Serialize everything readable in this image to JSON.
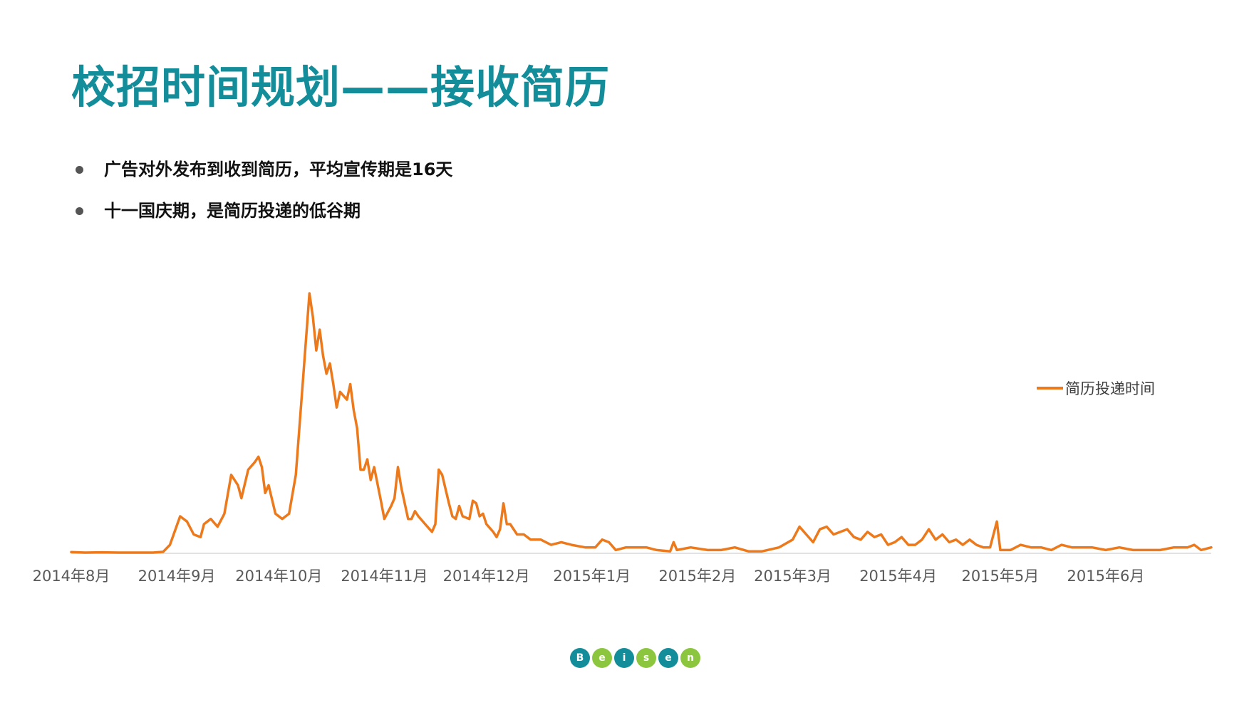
{
  "slide": {
    "title": "校招时间规划——接收简历",
    "bullets": [
      "广告对外发布到收到简历，平均宣传期是16天",
      "十一国庆期，是简历投递的低谷期"
    ],
    "logo_letters": [
      "B",
      "e",
      "i",
      "s",
      "e",
      "n"
    ],
    "logo_colors": [
      "#138d99",
      "#8cc63f",
      "#138d99",
      "#8cc63f",
      "#138d99",
      "#8cc63f"
    ],
    "title_color": "#138d99"
  },
  "chart_data": {
    "type": "line",
    "title": "",
    "xlabel": "",
    "ylabel": "",
    "ylim": [
      0,
      100
    ],
    "grid": false,
    "legend": "right",
    "x_ticks": [
      {
        "date": "2014-08-01",
        "label": "2014年8月"
      },
      {
        "date": "2014-09-01",
        "label": "2014年9月"
      },
      {
        "date": "2014-10-01",
        "label": "2014年10月"
      },
      {
        "date": "2014-11-01",
        "label": "2014年11月"
      },
      {
        "date": "2014-12-01",
        "label": "2014年12月"
      },
      {
        "date": "2015-01-01",
        "label": "2015年1月"
      },
      {
        "date": "2015-02-01",
        "label": "2015年2月"
      },
      {
        "date": "2015-03-01",
        "label": "2015年3月"
      },
      {
        "date": "2015-04-01",
        "label": "2015年4月"
      },
      {
        "date": "2015-05-01",
        "label": "2015年5月"
      },
      {
        "date": "2015-06-01",
        "label": "2015年6月"
      }
    ],
    "series": [
      {
        "name": "简历投递时间",
        "color": "#ec7a1c",
        "points": [
          [
            "2014-08-01",
            0.2
          ],
          [
            "2014-08-05",
            0.0
          ],
          [
            "2014-08-10",
            0.1
          ],
          [
            "2014-08-15",
            0.0
          ],
          [
            "2014-08-20",
            0.0
          ],
          [
            "2014-08-25",
            0.0
          ],
          [
            "2014-08-28",
            0.3
          ],
          [
            "2014-08-30",
            3
          ],
          [
            "2014-09-02",
            14
          ],
          [
            "2014-09-04",
            12
          ],
          [
            "2014-09-06",
            7
          ],
          [
            "2014-09-08",
            6
          ],
          [
            "2014-09-09",
            11
          ],
          [
            "2014-09-11",
            13
          ],
          [
            "2014-09-13",
            10
          ],
          [
            "2014-09-15",
            15
          ],
          [
            "2014-09-17",
            30
          ],
          [
            "2014-09-19",
            26
          ],
          [
            "2014-09-20",
            21
          ],
          [
            "2014-09-22",
            32
          ],
          [
            "2014-09-24",
            35
          ],
          [
            "2014-09-25",
            37
          ],
          [
            "2014-09-26",
            33
          ],
          [
            "2014-09-27",
            23
          ],
          [
            "2014-09-28",
            26
          ],
          [
            "2014-09-30",
            15
          ],
          [
            "2014-10-02",
            13
          ],
          [
            "2014-10-04",
            15
          ],
          [
            "2014-10-06",
            30
          ],
          [
            "2014-10-08",
            65
          ],
          [
            "2014-10-10",
            100
          ],
          [
            "2014-10-11",
            91
          ],
          [
            "2014-10-12",
            78
          ],
          [
            "2014-10-13",
            86
          ],
          [
            "2014-10-14",
            76
          ],
          [
            "2014-10-15",
            69
          ],
          [
            "2014-10-16",
            73
          ],
          [
            "2014-10-17",
            65
          ],
          [
            "2014-10-18",
            56
          ],
          [
            "2014-10-19",
            62
          ],
          [
            "2014-10-21",
            59
          ],
          [
            "2014-10-22",
            65
          ],
          [
            "2014-10-23",
            55
          ],
          [
            "2014-10-24",
            48
          ],
          [
            "2014-10-25",
            32
          ],
          [
            "2014-10-26",
            32
          ],
          [
            "2014-10-27",
            36
          ],
          [
            "2014-10-28",
            28
          ],
          [
            "2014-10-29",
            33
          ],
          [
            "2014-10-31",
            20
          ],
          [
            "2014-11-01",
            13
          ],
          [
            "2014-11-03",
            18
          ],
          [
            "2014-11-04",
            21
          ],
          [
            "2014-11-05",
            33
          ],
          [
            "2014-11-06",
            25
          ],
          [
            "2014-11-08",
            13
          ],
          [
            "2014-11-09",
            13
          ],
          [
            "2014-11-10",
            16
          ],
          [
            "2014-11-11",
            14
          ],
          [
            "2014-11-13",
            11
          ],
          [
            "2014-11-15",
            8
          ],
          [
            "2014-11-16",
            11
          ],
          [
            "2014-11-17",
            32
          ],
          [
            "2014-11-18",
            30
          ],
          [
            "2014-11-20",
            19
          ],
          [
            "2014-11-21",
            14
          ],
          [
            "2014-11-22",
            13
          ],
          [
            "2014-11-23",
            18
          ],
          [
            "2014-11-24",
            14
          ],
          [
            "2014-11-26",
            13
          ],
          [
            "2014-11-27",
            20
          ],
          [
            "2014-11-28",
            19
          ],
          [
            "2014-11-29",
            14
          ],
          [
            "2014-11-30",
            15
          ],
          [
            "2014-12-01",
            11
          ],
          [
            "2014-12-03",
            8
          ],
          [
            "2014-12-04",
            6
          ],
          [
            "2014-12-05",
            9
          ],
          [
            "2014-12-06",
            19
          ],
          [
            "2014-12-07",
            11
          ],
          [
            "2014-12-08",
            11
          ],
          [
            "2014-12-10",
            7
          ],
          [
            "2014-12-12",
            7
          ],
          [
            "2014-12-14",
            5
          ],
          [
            "2014-12-17",
            5
          ],
          [
            "2014-12-20",
            3
          ],
          [
            "2014-12-23",
            4
          ],
          [
            "2014-12-26",
            3
          ],
          [
            "2014-12-30",
            2
          ],
          [
            "2015-01-02",
            2
          ],
          [
            "2015-01-04",
            5
          ],
          [
            "2015-01-06",
            4
          ],
          [
            "2015-01-08",
            1
          ],
          [
            "2015-01-11",
            2
          ],
          [
            "2015-01-14",
            2
          ],
          [
            "2015-01-17",
            2
          ],
          [
            "2015-01-20",
            1
          ],
          [
            "2015-01-24",
            0.5
          ],
          [
            "2015-01-25",
            4
          ],
          [
            "2015-01-26",
            1
          ],
          [
            "2015-01-30",
            2
          ],
          [
            "2015-02-04",
            1
          ],
          [
            "2015-02-08",
            1
          ],
          [
            "2015-02-12",
            2
          ],
          [
            "2015-02-16",
            0.5
          ],
          [
            "2015-02-20",
            0.5
          ],
          [
            "2015-02-25",
            2
          ],
          [
            "2015-03-01",
            5
          ],
          [
            "2015-03-03",
            10
          ],
          [
            "2015-03-05",
            7
          ],
          [
            "2015-03-07",
            4
          ],
          [
            "2015-03-09",
            9
          ],
          [
            "2015-03-11",
            10
          ],
          [
            "2015-03-13",
            7
          ],
          [
            "2015-03-15",
            8
          ],
          [
            "2015-03-17",
            9
          ],
          [
            "2015-03-19",
            6
          ],
          [
            "2015-03-21",
            5
          ],
          [
            "2015-03-23",
            8
          ],
          [
            "2015-03-25",
            6
          ],
          [
            "2015-03-27",
            7
          ],
          [
            "2015-03-29",
            3
          ],
          [
            "2015-03-31",
            4
          ],
          [
            "2015-04-02",
            6
          ],
          [
            "2015-04-04",
            3
          ],
          [
            "2015-04-06",
            3
          ],
          [
            "2015-04-08",
            5
          ],
          [
            "2015-04-10",
            9
          ],
          [
            "2015-04-12",
            5
          ],
          [
            "2015-04-14",
            7
          ],
          [
            "2015-04-16",
            4
          ],
          [
            "2015-04-18",
            5
          ],
          [
            "2015-04-20",
            3
          ],
          [
            "2015-04-22",
            5
          ],
          [
            "2015-04-24",
            3
          ],
          [
            "2015-04-26",
            2
          ],
          [
            "2015-04-28",
            2
          ],
          [
            "2015-04-30",
            12
          ],
          [
            "2015-05-01",
            1
          ],
          [
            "2015-05-04",
            1
          ],
          [
            "2015-05-07",
            3
          ],
          [
            "2015-05-10",
            2
          ],
          [
            "2015-05-13",
            2
          ],
          [
            "2015-05-16",
            1
          ],
          [
            "2015-05-19",
            3
          ],
          [
            "2015-05-22",
            2
          ],
          [
            "2015-05-25",
            2
          ],
          [
            "2015-05-28",
            2
          ],
          [
            "2015-06-01",
            1
          ],
          [
            "2015-06-05",
            2
          ],
          [
            "2015-06-09",
            1
          ],
          [
            "2015-06-13",
            1
          ],
          [
            "2015-06-17",
            1
          ],
          [
            "2015-06-21",
            2
          ],
          [
            "2015-06-25",
            2
          ],
          [
            "2015-06-27",
            3
          ],
          [
            "2015-06-29",
            1
          ],
          [
            "2015-07-02",
            2
          ]
        ]
      }
    ]
  }
}
